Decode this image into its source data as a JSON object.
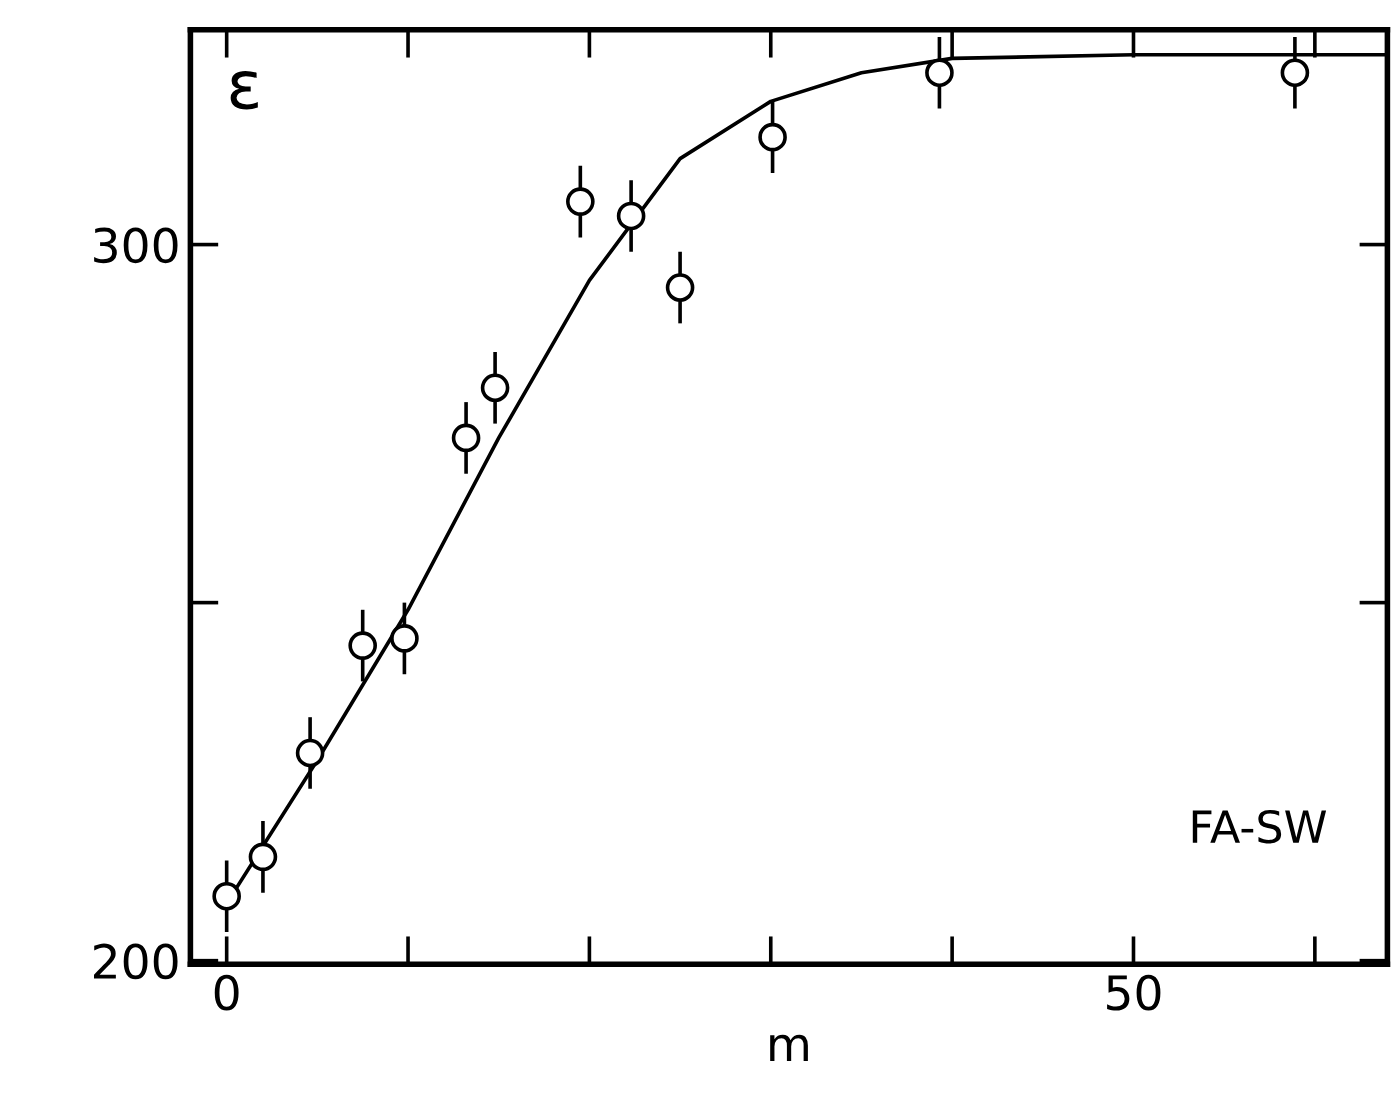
{
  "chart_data": {
    "type": "scatter",
    "ylabel": "ε",
    "xlabel": "m",
    "annotations": [
      "FA-SW"
    ],
    "xlim": [
      -2,
      64
    ],
    "ylim": [
      199.5,
      330
    ],
    "xticks": [
      0,
      {
        "value": 10,
        "label": null
      },
      {
        "value": 20,
        "label": null
      },
      {
        "value": 30,
        "label": null
      },
      {
        "value": 40,
        "label": null
      },
      50,
      {
        "value": 60,
        "label": null
      }
    ],
    "yticks": [
      200,
      {
        "value": 250,
        "label": null
      },
      300
    ],
    "grid": false,
    "marker": "circle",
    "series": [
      {
        "color": "#000000",
        "x": [
          0,
          2,
          4.6,
          7.5,
          9.8,
          13.2,
          14.8,
          19.5,
          22.3,
          25,
          30.1,
          39.3,
          58.9
        ],
        "values": [
          209,
          214.5,
          229,
          244,
          245,
          273,
          280,
          306,
          304,
          294,
          315,
          324,
          324
        ],
        "errors": [
          5,
          5,
          5,
          5,
          5,
          5,
          5,
          5,
          5,
          5,
          5,
          5,
          5
        ]
      },
      {
        "type": "line",
        "color": "#000000",
        "marker": "none",
        "x": [
          0,
          5,
          10,
          15,
          20,
          25,
          30,
          35,
          40,
          50,
          64
        ],
        "values": [
          208,
          228,
          249,
          273,
          295,
          312,
          320,
          324,
          326,
          326.5,
          326.5
        ]
      }
    ]
  }
}
